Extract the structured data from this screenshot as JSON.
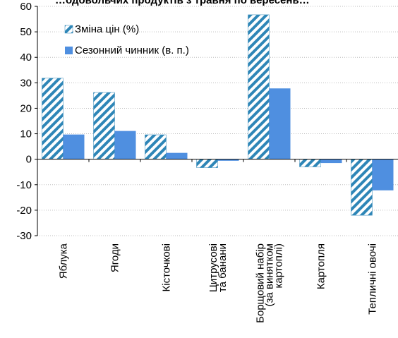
{
  "chart_data": {
    "type": "bar",
    "title": "…одовольчих продуктів з травня по вересень…",
    "categories": [
      "Яблука",
      "Ягоди",
      "Кісточкові",
      "Цитрусові та банани",
      "Борщовий набір (за винятком картоплі)",
      "Картопля",
      "Тепличні овочі"
    ],
    "category_lines": [
      [
        "Яблука"
      ],
      [
        "Ягоди"
      ],
      [
        "Кісточкові"
      ],
      [
        "Цитрусові",
        "та банани"
      ],
      [
        "Борщовий набір",
        "(за винятком",
        "картоплі)"
      ],
      [
        "Картопля"
      ],
      [
        "Тепличні овочі"
      ]
    ],
    "series": [
      {
        "name": "Зміна цін (%)",
        "values": [
          31.8,
          26.2,
          9.6,
          -3.3,
          56.7,
          -3.0,
          -22.0
        ],
        "color": "#2e86b7",
        "pattern": "diagonal-stripes"
      },
      {
        "name": "Сезонний чинник (в. п.)",
        "values": [
          9.7,
          11.1,
          2.5,
          -0.6,
          27.8,
          -1.5,
          -12.2
        ],
        "color": "#4f8fe0",
        "pattern": "solid"
      }
    ],
    "ylim": [
      -30,
      60
    ],
    "yticks": [
      -30,
      -20,
      -10,
      0,
      10,
      20,
      30,
      40,
      50,
      60
    ],
    "ytick_labels": [
      "-30",
      "-20",
      "-10",
      "0",
      "10",
      "20",
      "30",
      "40",
      "50",
      "60"
    ],
    "grid": true,
    "legend_position": "top-left"
  }
}
